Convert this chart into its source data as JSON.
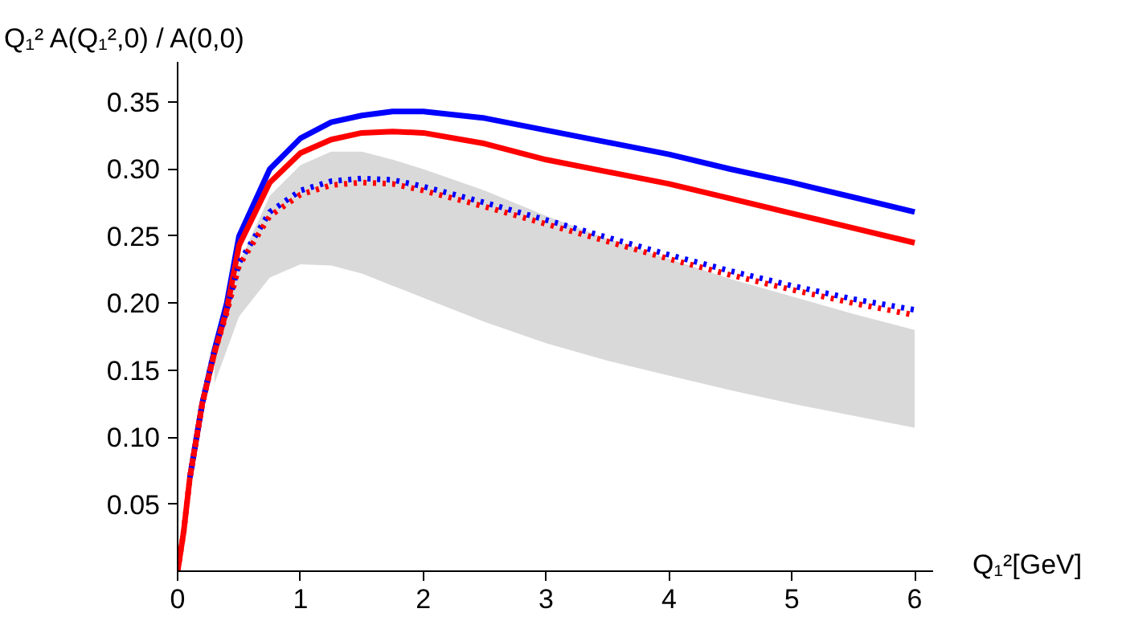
{
  "chart_data": {
    "type": "line",
    "xlabel": "Q₁²[GeV]",
    "ylabel": "Q₁² A(Q₁²,0) / A(0,0)",
    "x": [
      0,
      0.05,
      0.1,
      0.2,
      0.3,
      0.4,
      0.5,
      0.75,
      1,
      1.25,
      1.5,
      1.75,
      2,
      2.5,
      3,
      3.5,
      4,
      4.5,
      5,
      5.5,
      6
    ],
    "xlim": [
      0,
      6.15
    ],
    "ylim": [
      0,
      0.38
    ],
    "xticks": [
      0,
      1,
      2,
      3,
      4,
      5,
      6
    ],
    "yticks": [
      {
        "value": 0.05,
        "label": "0.05"
      },
      {
        "value": 0.1,
        "label": "0.10"
      },
      {
        "value": 0.15,
        "label": "0.15"
      },
      {
        "value": 0.2,
        "label": "0.20"
      },
      {
        "value": 0.25,
        "label": "0.25"
      },
      {
        "value": 0.3,
        "label": "0.30"
      },
      {
        "value": 0.35,
        "label": "0.35"
      }
    ],
    "series": [
      {
        "color": "#0000ff",
        "line_style": "solid",
        "values": [
          null,
          null,
          0.07,
          0.125,
          0.165,
          0.2,
          0.25,
          0.3,
          0.323,
          0.335,
          0.34,
          0.343,
          0.343,
          0.338,
          0.329,
          0.32,
          0.311,
          0.3,
          0.29,
          0.279,
          0.268
        ]
      },
      {
        "color": "#ff0000",
        "line_style": "solid",
        "values": [
          0,
          0.03,
          0.07,
          0.125,
          0.163,
          0.195,
          0.243,
          0.29,
          0.312,
          0.322,
          0.327,
          0.328,
          0.327,
          0.319,
          0.307,
          0.298,
          0.289,
          0.278,
          0.267,
          0.256,
          0.245
        ]
      },
      {
        "color": "#0000ff",
        "line_style": "dotted",
        "values": [
          null,
          null,
          0.07,
          0.125,
          0.165,
          0.195,
          0.23,
          0.268,
          0.284,
          0.291,
          0.293,
          0.292,
          0.287,
          0.275,
          0.262,
          0.249,
          0.236,
          0.224,
          0.213,
          0.203,
          0.195
        ]
      },
      {
        "color": "#ff0000",
        "line_style": "dotted",
        "values": [
          0,
          0.03,
          0.07,
          0.124,
          0.163,
          0.193,
          0.228,
          0.265,
          0.281,
          0.288,
          0.29,
          0.289,
          0.284,
          0.272,
          0.259,
          0.246,
          0.233,
          0.221,
          0.21,
          0.2,
          0.191
        ],
        "lower": [
          null,
          null,
          null,
          null,
          0.14,
          0.165,
          0.19,
          0.219,
          0.229,
          0.228,
          0.222,
          0.213,
          0.204,
          0.186,
          0.17,
          0.157,
          0.146,
          0.135,
          0.125,
          0.116,
          0.107
        ],
        "upper": [
          null,
          null,
          null,
          null,
          0.165,
          0.195,
          0.23,
          0.28,
          0.303,
          0.313,
          0.313,
          0.307,
          0.3,
          0.284,
          0.265,
          0.248,
          0.233,
          0.218,
          0.205,
          0.192,
          0.18
        ]
      }
    ]
  }
}
